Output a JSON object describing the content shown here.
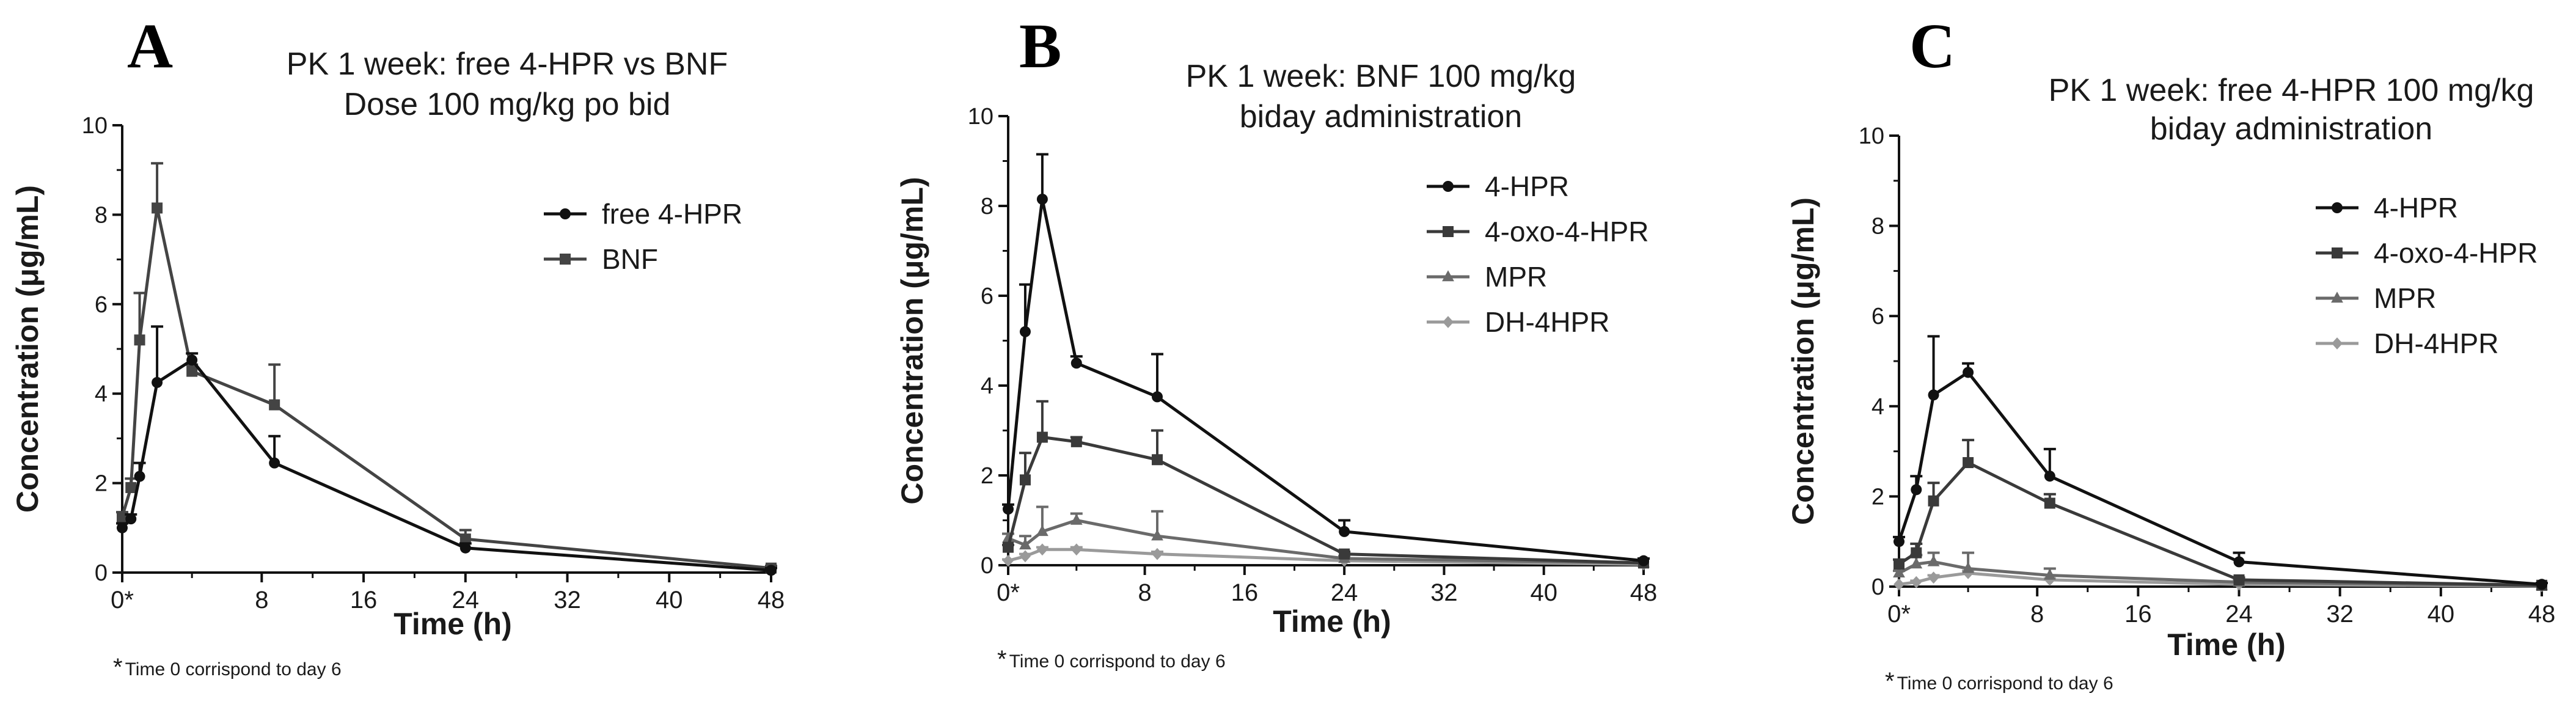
{
  "footnote_marker": "*",
  "footnote_text": "Time 0 corrispond to day 6",
  "chart_data": [
    {
      "type": "line",
      "panel": "A",
      "title": [
        "PK 1 week: free 4-HPR vs BNF",
        "Dose 100 mg/kg po bid"
      ],
      "xlabel": "Time (h)",
      "ylabel": "Concentration (μg/mL)",
      "xlim": [
        0,
        48
      ],
      "ylim": [
        0,
        10
      ],
      "xticks": [
        "0*",
        "8",
        "16",
        "24",
        "32",
        "40",
        "48"
      ],
      "yticks": [
        "0",
        "2",
        "4",
        "6",
        "8",
        "10"
      ],
      "legend_position": "right",
      "series": [
        {
          "name": "free 4-HPR",
          "marker": "circle",
          "color": "#111111",
          "x": [
            0,
            0.5,
            1,
            2,
            4,
            9,
            24,
            48
          ],
          "y": [
            1.0,
            1.2,
            2.15,
            4.25,
            4.75,
            2.45,
            0.55,
            0.05
          ],
          "err": [
            0.1,
            0.1,
            0.3,
            1.25,
            0.15,
            0.6,
            0.1,
            0.05
          ]
        },
        {
          "name": "BNF",
          "marker": "square",
          "color": "#444444",
          "x": [
            0,
            0.5,
            1,
            2,
            4,
            9,
            24,
            48
          ],
          "y": [
            1.25,
            1.9,
            5.2,
            8.15,
            4.5,
            3.75,
            0.75,
            0.1
          ],
          "err": [
            0.1,
            0.2,
            1.05,
            1.0,
            0.15,
            0.9,
            0.2,
            0.05
          ]
        }
      ]
    },
    {
      "type": "line",
      "panel": "B",
      "title": [
        "PK 1 week: BNF 100 mg/kg",
        "biday administration"
      ],
      "xlabel": "Time (h)",
      "ylabel": "Concentration (μg/mL)",
      "xlim": [
        0,
        48
      ],
      "ylim": [
        0,
        10
      ],
      "xticks": [
        "0*",
        "8",
        "16",
        "24",
        "32",
        "40",
        "48"
      ],
      "yticks": [
        "0",
        "2",
        "4",
        "6",
        "8",
        "10"
      ],
      "legend_position": "right",
      "series": [
        {
          "name": "4-HPR",
          "marker": "circle",
          "color": "#111111",
          "x": [
            0,
            1,
            2,
            4,
            9,
            24,
            48
          ],
          "y": [
            1.25,
            5.2,
            8.15,
            4.5,
            3.75,
            0.75,
            0.1
          ],
          "err": [
            0.1,
            1.05,
            1.0,
            0.15,
            0.95,
            0.25,
            0.05
          ]
        },
        {
          "name": "4-oxo-4-HPR",
          "marker": "square",
          "color": "#3a3a3a",
          "x": [
            0,
            1,
            2,
            4,
            9,
            24,
            48
          ],
          "y": [
            0.4,
            1.9,
            2.85,
            2.75,
            2.35,
            0.25,
            0.05
          ],
          "err": [
            0.05,
            0.6,
            0.8,
            0.1,
            0.65,
            0.05,
            0.02
          ]
        },
        {
          "name": "MPR",
          "marker": "triangle",
          "color": "#6a6a6a",
          "x": [
            0,
            1,
            2,
            4,
            9,
            24,
            48
          ],
          "y": [
            0.6,
            0.45,
            0.75,
            1.0,
            0.65,
            0.15,
            0.05
          ],
          "err": [
            0.1,
            0.2,
            0.55,
            0.15,
            0.55,
            0.05,
            0.02
          ]
        },
        {
          "name": "DH-4HPR",
          "marker": "diamond",
          "color": "#9a9a9a",
          "x": [
            0,
            1,
            2,
            4,
            9,
            24,
            48
          ],
          "y": [
            0.1,
            0.2,
            0.35,
            0.35,
            0.25,
            0.1,
            0.02
          ],
          "err": [
            0.03,
            0.05,
            0.05,
            0.05,
            0.05,
            0.02,
            0.01
          ]
        }
      ]
    },
    {
      "type": "line",
      "panel": "C",
      "title": [
        "PK 1 week: free 4-HPR 100 mg/kg",
        "biday administration"
      ],
      "xlabel": "Time (h)",
      "ylabel": "Concentration (μg/mL)",
      "xlim": [
        0,
        48
      ],
      "ylim": [
        0,
        10
      ],
      "xticks": [
        "0*",
        "8",
        "16",
        "24",
        "32",
        "40",
        "48"
      ],
      "yticks": [
        "0",
        "2",
        "4",
        "6",
        "8",
        "10"
      ],
      "legend_position": "right",
      "series": [
        {
          "name": "4-HPR",
          "marker": "circle",
          "color": "#111111",
          "x": [
            0,
            1,
            2,
            4,
            9,
            24,
            48
          ],
          "y": [
            1.0,
            2.15,
            4.25,
            4.75,
            2.45,
            0.55,
            0.05
          ],
          "err": [
            0.1,
            0.3,
            1.3,
            0.2,
            0.6,
            0.2,
            0.03
          ]
        },
        {
          "name": "4-oxo-4-HPR",
          "marker": "square",
          "color": "#3a3a3a",
          "x": [
            0,
            1,
            2,
            4,
            9,
            24,
            48
          ],
          "y": [
            0.5,
            0.75,
            1.9,
            2.75,
            1.85,
            0.15,
            0.03
          ],
          "err": [
            0.1,
            0.2,
            0.4,
            0.5,
            0.2,
            0.05,
            0.02
          ]
        },
        {
          "name": "MPR",
          "marker": "triangle",
          "color": "#6a6a6a",
          "x": [
            0,
            1,
            2,
            4,
            9,
            24,
            48
          ],
          "y": [
            0.3,
            0.5,
            0.55,
            0.4,
            0.25,
            0.1,
            0.02
          ],
          "err": [
            0.05,
            0.2,
            0.2,
            0.35,
            0.15,
            0.05,
            0.01
          ]
        },
        {
          "name": "DH-4HPR",
          "marker": "diamond",
          "color": "#9a9a9a",
          "x": [
            0,
            1,
            2,
            4,
            9,
            24,
            48
          ],
          "y": [
            0.05,
            0.1,
            0.2,
            0.3,
            0.15,
            0.05,
            0.01
          ],
          "err": [
            0.02,
            0.03,
            0.05,
            0.05,
            0.03,
            0.02,
            0.01
          ]
        }
      ]
    }
  ]
}
